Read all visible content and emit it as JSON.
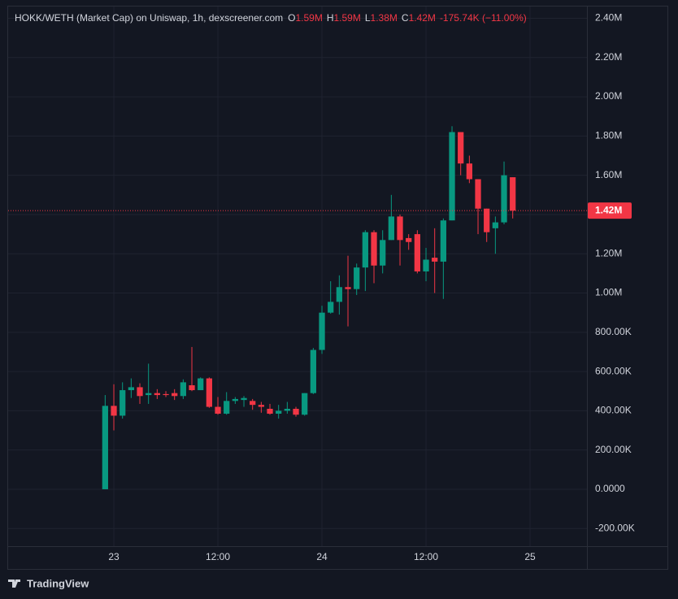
{
  "chart_data": {
    "type": "candlestick",
    "title": "HOKK/WETH (Market Cap) on Uniswap, 1h, dexscreener.com",
    "ohlc_header": {
      "o_label": "O",
      "o": "1.59M",
      "h_label": "H",
      "h": "1.59M",
      "l_label": "L",
      "l": "1.38M",
      "c_label": "C",
      "c": "1.42M",
      "change": "-175.74K (−11.00%)"
    },
    "up_color": "#089981",
    "down_color": "#f23645",
    "x": [
      -1,
      0,
      1,
      2,
      3,
      4,
      5,
      6,
      7,
      8,
      9,
      10,
      11,
      12,
      13,
      14,
      15,
      16,
      17,
      18,
      19,
      20,
      21,
      22,
      23,
      24,
      25,
      26,
      27,
      28,
      29,
      30,
      31,
      32,
      33,
      34,
      35,
      36,
      37,
      38,
      39,
      40,
      41,
      42,
      43,
      44,
      45,
      46
    ],
    "open": [
      0,
      425000,
      375000,
      505000,
      520000,
      480000,
      490000,
      485000,
      490000,
      475000,
      530000,
      505000,
      565000,
      420000,
      385000,
      450000,
      455000,
      450000,
      430000,
      410000,
      385000,
      400000,
      410000,
      380000,
      490000,
      710000,
      900000,
      955000,
      1030000,
      1020000,
      1130000,
      1310000,
      1140000,
      1270000,
      1390000,
      1280000,
      1300000,
      1110000,
      1180000,
      1160000,
      1370000,
      1820000,
      1660000,
      1580000,
      1430000,
      1330000,
      1360000,
      1590000
    ],
    "high": [
      480000,
      535000,
      545000,
      565000,
      540000,
      640000,
      510000,
      500000,
      510000,
      560000,
      725000,
      570000,
      570000,
      470000,
      495000,
      470000,
      475000,
      460000,
      445000,
      435000,
      430000,
      445000,
      420000,
      490000,
      720000,
      935000,
      1060000,
      1090000,
      1190000,
      1150000,
      1320000,
      1320000,
      1320000,
      1500000,
      1400000,
      1300000,
      1320000,
      1230000,
      1330000,
      1380000,
      1850000,
      1820000,
      1700000,
      1580000,
      1430000,
      1390000,
      1670000,
      1590000
    ],
    "low": [
      0,
      300000,
      360000,
      465000,
      435000,
      435000,
      460000,
      470000,
      455000,
      460000,
      500000,
      505000,
      415000,
      380000,
      380000,
      435000,
      420000,
      405000,
      390000,
      380000,
      360000,
      385000,
      370000,
      375000,
      485000,
      690000,
      895000,
      890000,
      830000,
      990000,
      1010000,
      1050000,
      1100000,
      1270000,
      1140000,
      1220000,
      1100000,
      1060000,
      1000000,
      970000,
      1370000,
      1600000,
      1560000,
      1300000,
      1260000,
      1200000,
      1350000,
      1380000
    ],
    "close": [
      425000,
      375000,
      505000,
      520000,
      475000,
      490000,
      480000,
      480000,
      475000,
      545000,
      505000,
      565000,
      420000,
      385000,
      450000,
      460000,
      465000,
      430000,
      420000,
      385000,
      400000,
      410000,
      380000,
      490000,
      710000,
      900000,
      955000,
      1030000,
      1020000,
      1130000,
      1310000,
      1140000,
      1270000,
      1390000,
      1270000,
      1260000,
      1110000,
      1170000,
      1160000,
      1370000,
      1820000,
      1660000,
      1580000,
      1430000,
      1310000,
      1360000,
      1600000,
      1420000
    ],
    "xlim": [
      -12.19,
      54.56
    ],
    "xticks": [
      {
        "value": 0,
        "label": "23"
      },
      {
        "value": 12,
        "label": "12:00"
      },
      {
        "value": 24,
        "label": "24"
      },
      {
        "value": 36,
        "label": "12:00"
      },
      {
        "value": 48,
        "label": "25"
      }
    ],
    "ylim": [
      -290000,
      2460000
    ],
    "yticks": [
      {
        "value": -200000,
        "label": "-200.00K"
      },
      {
        "value": 0,
        "label": "0.0000"
      },
      {
        "value": 200000,
        "label": "200.00K"
      },
      {
        "value": 400000,
        "label": "400.00K"
      },
      {
        "value": 600000,
        "label": "600.00K"
      },
      {
        "value": 800000,
        "label": "800.00K"
      },
      {
        "value": 1000000,
        "label": "1.00M"
      },
      {
        "value": 1200000,
        "label": "1.20M"
      },
      {
        "value": 1400000,
        "label": "1.40M"
      },
      {
        "value": 1600000,
        "label": "1.60M"
      },
      {
        "value": 1800000,
        "label": "1.80M"
      },
      {
        "value": 2000000,
        "label": "2.00M"
      },
      {
        "value": 2200000,
        "label": "2.20M"
      },
      {
        "value": 2400000,
        "label": "2.40M"
      }
    ],
    "last_price": {
      "value": 1420000,
      "label": "1.42M"
    },
    "grid": true,
    "brand": "TradingView"
  }
}
